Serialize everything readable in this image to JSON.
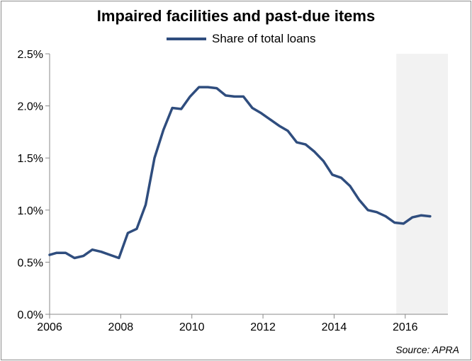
{
  "chart_data": {
    "type": "line",
    "title": "Impaired facilities and past-due items",
    "xlabel": "",
    "ylabel": "",
    "xlim": [
      2006,
      2017.2
    ],
    "ylim": [
      0,
      2.5
    ],
    "x_ticks": [
      2006,
      2008,
      2010,
      2012,
      2014,
      2016
    ],
    "x_tick_labels": [
      "2006",
      "2008",
      "2010",
      "2012",
      "2014",
      "2016"
    ],
    "y_ticks": [
      0,
      0.5,
      1.0,
      1.5,
      2.0,
      2.5
    ],
    "y_tick_labels": [
      "0.0%",
      "0.5%",
      "1.0%",
      "1.5%",
      "2.0%",
      "2.5%"
    ],
    "grid": false,
    "legend_position": "top",
    "shaded_region": {
      "x_start": 2015.75,
      "x_end": 2017.2,
      "color": "#f2f2f2"
    },
    "series": [
      {
        "name": "Share of total loans",
        "color": "#2f4d7e",
        "x": [
          2006.0,
          2006.2,
          2006.45,
          2006.7,
          2006.95,
          2007.2,
          2007.45,
          2007.7,
          2007.95,
          2008.2,
          2008.45,
          2008.7,
          2008.95,
          2009.2,
          2009.45,
          2009.7,
          2009.95,
          2010.2,
          2010.45,
          2010.7,
          2010.95,
          2011.2,
          2011.45,
          2011.7,
          2011.95,
          2012.2,
          2012.45,
          2012.7,
          2012.95,
          2013.2,
          2013.45,
          2013.7,
          2013.95,
          2014.2,
          2014.45,
          2014.7,
          2014.95,
          2015.2,
          2015.45,
          2015.7,
          2015.95,
          2016.2,
          2016.45,
          2016.7
        ],
        "values": [
          0.57,
          0.59,
          0.59,
          0.54,
          0.56,
          0.62,
          0.6,
          0.57,
          0.54,
          0.78,
          0.82,
          1.05,
          1.5,
          1.77,
          1.98,
          1.97,
          2.09,
          2.18,
          2.18,
          2.17,
          2.1,
          2.09,
          2.09,
          1.98,
          1.93,
          1.87,
          1.81,
          1.76,
          1.65,
          1.63,
          1.56,
          1.47,
          1.34,
          1.31,
          1.23,
          1.1,
          1.0,
          0.98,
          0.94,
          0.88,
          0.87,
          0.93,
          0.95,
          0.94
        ]
      }
    ],
    "source_note": "Source: APRA"
  }
}
